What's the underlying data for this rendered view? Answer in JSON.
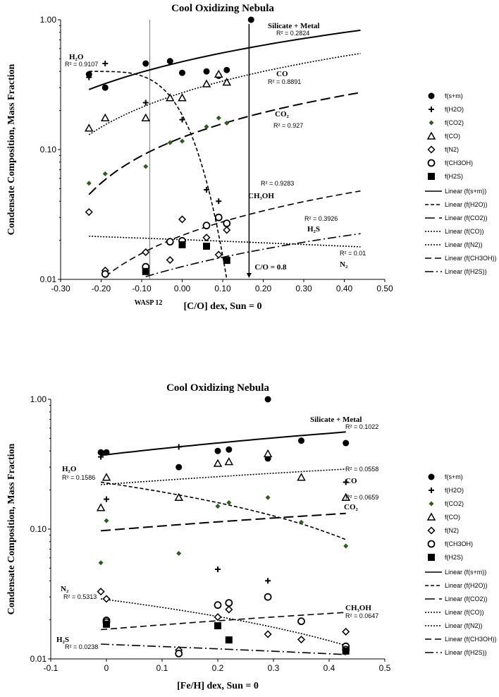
{
  "chart_data": [
    {
      "type": "scatter",
      "title": "Cool Oxidizing Nebula",
      "xlabel": "[C/O] dex, Sun = 0",
      "ylabel": "Condensate Composition, Mass Fraction",
      "xlim": [
        -0.3,
        0.5
      ],
      "ylim": [
        0.01,
        1.0
      ],
      "yscale": "log",
      "xticks": [
        "-0.30",
        "-0.20",
        "-0.10",
        "0.00",
        "0.10",
        "0.20",
        "0.30",
        "0.40",
        "0.50"
      ],
      "yticks": [
        "0.01",
        "0.10",
        "1.00"
      ],
      "series": [
        {
          "name": "f(s+m)",
          "marker": "circle-filled",
          "points": [
            [
              -0.23,
              0.38
            ],
            [
              -0.19,
              0.3
            ],
            [
              -0.09,
              0.46
            ],
            [
              -0.03,
              0.48
            ],
            [
              0.0,
              0.39
            ],
            [
              0.06,
              0.4
            ],
            [
              0.09,
              0.37
            ],
            [
              0.11,
              0.41
            ],
            [
              0.17,
              1.0
            ]
          ]
        },
        {
          "name": "f(H2O)",
          "marker": "plus",
          "points": [
            [
              -0.23,
              0.36
            ],
            [
              -0.19,
              0.46
            ],
            [
              -0.09,
              0.23
            ],
            [
              0.0,
              0.17
            ],
            [
              0.06,
              0.049
            ],
            [
              0.09,
              0.04
            ]
          ]
        },
        {
          "name": "f(CO2)",
          "marker": "diamond-filled",
          "points": [
            [
              -0.23,
              0.055
            ],
            [
              -0.19,
              0.065
            ],
            [
              -0.09,
              0.074
            ],
            [
              -0.03,
              0.113
            ],
            [
              0.0,
              0.116
            ],
            [
              0.06,
              0.15
            ],
            [
              0.09,
              0.175
            ],
            [
              0.11,
              0.16
            ]
          ]
        },
        {
          "name": "f(CO)",
          "marker": "triangle-open",
          "points": [
            [
              -0.23,
              0.146
            ],
            [
              -0.19,
              0.175
            ],
            [
              -0.09,
              0.175
            ],
            [
              -0.03,
              0.25
            ],
            [
              0.0,
              0.25
            ],
            [
              0.06,
              0.32
            ],
            [
              0.09,
              0.38
            ],
            [
              0.11,
              0.33
            ]
          ]
        },
        {
          "name": "f(N2)",
          "marker": "diamond-open",
          "points": [
            [
              -0.23,
              0.033
            ],
            [
              -0.19,
              0.0117
            ],
            [
              -0.09,
              0.0162
            ],
            [
              -0.03,
              0.0141
            ],
            [
              0.0,
              0.029
            ],
            [
              0.06,
              0.021
            ],
            [
              0.09,
              0.0155
            ],
            [
              0.11,
              0.024
            ]
          ]
        },
        {
          "name": "f(CH3OH)",
          "marker": "circle-open",
          "points": [
            [
              -0.19,
              0.011
            ],
            [
              -0.09,
              0.0125
            ],
            [
              -0.03,
              0.0195
            ],
            [
              0.0,
              0.0198
            ],
            [
              0.06,
              0.026
            ],
            [
              0.09,
              0.03
            ],
            [
              0.11,
              0.027
            ]
          ]
        },
        {
          "name": "f(H2S)",
          "marker": "square-filled",
          "points": [
            [
              -0.09,
              0.0115
            ],
            [
              0.0,
              0.0185
            ],
            [
              0.06,
              0.018
            ],
            [
              0.11,
              0.014
            ]
          ]
        }
      ],
      "fits": [
        {
          "name": "Linear (f(s+m))",
          "dash": "solid",
          "x": [
            -0.23,
            0.44
          ],
          "y": [
            0.29,
            0.83
          ],
          "r2": "R² = 0.2824"
        },
        {
          "name": "Linear (f(H2O))",
          "dash": "short",
          "x": [
            -0.23,
            0.11
          ],
          "y": [
            0.4,
            0.01
          ],
          "r2": "R² = 0.9107",
          "curved": true
        },
        {
          "name": "Linear (f(CO2))",
          "dash": "long",
          "x": [
            -0.23,
            0.44
          ],
          "y": [
            0.045,
            0.275
          ],
          "r2": "R² = 0.927"
        },
        {
          "name": "Linear (f(CO))",
          "dash": "dot",
          "x": [
            -0.23,
            0.44
          ],
          "y": [
            0.13,
            0.55
          ],
          "r2": "R² = 0.8891"
        },
        {
          "name": "Linear (f(N2))",
          "dash": "dot",
          "x": [
            -0.23,
            0.44
          ],
          "y": [
            0.0215,
            0.0178
          ],
          "r2": "R² = 0.01"
        },
        {
          "name": "Linear (f(CH3OH))",
          "dash": "dash",
          "x": [
            -0.19,
            0.44
          ],
          "y": [
            0.0105,
            0.048
          ],
          "r2": "R² = 0.9283"
        },
        {
          "name": "Linear (f(H2S))",
          "dash": "dashdot",
          "x": [
            -0.09,
            0.44
          ],
          "y": [
            0.0105,
            0.0225
          ],
          "r2": "R² = 0.3926"
        }
      ],
      "reference_lines": [
        {
          "label": "WASP 12",
          "x": -0.08
        },
        {
          "label": "C/O = 0.8",
          "x": 0.165
        }
      ],
      "labels": {
        "silicate": "Silicate + Metal",
        "h2o": "H₂O",
        "co": "CO",
        "co2": "CO₂",
        "ch3oh": "CH₃OH",
        "h2s": "H₂S",
        "n2": "N₂"
      }
    },
    {
      "type": "scatter",
      "title": "Cool Oxidizing Nebula",
      "xlabel": "[Fe/H] dex, Sun = 0",
      "ylabel": "Condensate Composition, Mass Fraction",
      "xlim": [
        -0.1,
        0.5
      ],
      "ylim": [
        0.01,
        1.0
      ],
      "yscale": "log",
      "xticks": [
        "-0.1",
        "0",
        "0.1",
        "0.2",
        "0.3",
        "0.4",
        "0.5"
      ],
      "yticks": [
        "0.01",
        "0.10",
        "1.00"
      ],
      "series": [
        {
          "name": "f(s+m)",
          "marker": "circle-filled",
          "points": [
            [
              -0.01,
              0.39
            ],
            [
              0.0,
              0.39
            ],
            [
              0.13,
              0.3
            ],
            [
              0.2,
              0.4
            ],
            [
              0.22,
              0.41
            ],
            [
              0.29,
              1.0
            ],
            [
              0.29,
              0.35
            ],
            [
              0.35,
              0.48
            ],
            [
              0.43,
              0.46
            ]
          ]
        },
        {
          "name": "f(H2O)",
          "marker": "plus",
          "points": [
            [
              -0.01,
              0.36
            ],
            [
              0.0,
              0.17
            ],
            [
              0.13,
              0.43
            ],
            [
              0.2,
              0.049
            ],
            [
              0.29,
              0.04
            ],
            [
              0.43,
              0.23
            ]
          ]
        },
        {
          "name": "f(CO2)",
          "marker": "diamond-filled",
          "points": [
            [
              -0.01,
              0.055
            ],
            [
              0.0,
              0.116
            ],
            [
              0.13,
              0.065
            ],
            [
              0.2,
              0.15
            ],
            [
              0.22,
              0.16
            ],
            [
              0.29,
              0.175
            ],
            [
              0.35,
              0.113
            ],
            [
              0.43,
              0.074
            ]
          ]
        },
        {
          "name": "f(CO)",
          "marker": "triangle-open",
          "points": [
            [
              -0.01,
              0.146
            ],
            [
              0.0,
              0.25
            ],
            [
              0.13,
              0.175
            ],
            [
              0.2,
              0.32
            ],
            [
              0.22,
              0.33
            ],
            [
              0.29,
              0.38
            ],
            [
              0.35,
              0.25
            ],
            [
              0.43,
              0.175
            ]
          ]
        },
        {
          "name": "f(N2)",
          "marker": "diamond-open",
          "points": [
            [
              -0.01,
              0.033
            ],
            [
              0.0,
              0.029
            ],
            [
              0.13,
              0.0117
            ],
            [
              0.2,
              0.021
            ],
            [
              0.22,
              0.024
            ],
            [
              0.29,
              0.0155
            ],
            [
              0.35,
              0.0141
            ],
            [
              0.43,
              0.0162
            ]
          ]
        },
        {
          "name": "f(CH3OH)",
          "marker": "circle-open",
          "points": [
            [
              0.0,
              0.0198
            ],
            [
              0.0,
              0.0192
            ],
            [
              0.13,
              0.011
            ],
            [
              0.2,
              0.026
            ],
            [
              0.22,
              0.027
            ],
            [
              0.29,
              0.03
            ],
            [
              0.35,
              0.0195
            ],
            [
              0.43,
              0.0125
            ],
            [
              0.43,
              0.0118
            ]
          ]
        },
        {
          "name": "f(H2S)",
          "marker": "square-filled",
          "points": [
            [
              0.0,
              0.0185
            ],
            [
              0.2,
              0.018
            ],
            [
              0.22,
              0.014
            ],
            [
              0.43,
              0.0115
            ]
          ]
        }
      ],
      "fits": [
        {
          "name": "Linear (f(s+m))",
          "dash": "solid",
          "x": [
            -0.01,
            0.43
          ],
          "y": [
            0.37,
            0.56
          ],
          "r2": "R² = 0.1022"
        },
        {
          "name": "Linear (f(H2O))",
          "dash": "short",
          "x": [
            -0.01,
            0.43
          ],
          "y": [
            0.23,
            0.083
          ],
          "r2": "R² = 0.1586"
        },
        {
          "name": "Linear (f(CO2))",
          "dash": "long",
          "x": [
            -0.01,
            0.43
          ],
          "y": [
            0.097,
            0.132
          ],
          "r2": "R² = 0.0659"
        },
        {
          "name": "Linear (f(CO))",
          "dash": "dot",
          "x": [
            -0.01,
            0.43
          ],
          "y": [
            0.22,
            0.29
          ],
          "r2": "R² = 0.0558"
        },
        {
          "name": "Linear (f(N2))",
          "dash": "dot",
          "x": [
            -0.01,
            0.43
          ],
          "y": [
            0.029,
            0.0127
          ],
          "r2": "R² = 0.5313"
        },
        {
          "name": "Linear (f(CH3OH))",
          "dash": "dash",
          "x": [
            -0.01,
            0.43
          ],
          "y": [
            0.0168,
            0.0228
          ],
          "r2": "R² = 0.0647"
        },
        {
          "name": "Linear (f(H2S))",
          "dash": "dashdot",
          "x": [
            -0.01,
            0.43
          ],
          "y": [
            0.013,
            0.0108
          ],
          "r2": "R² = 0.0238"
        }
      ],
      "labels": {
        "silicate": "Silicate + Metal",
        "h2o": "H₂O",
        "co": "CO",
        "co2": "CO₂",
        "ch3oh": "CH₃OH",
        "h2s": "H₂S",
        "n2": "N₂"
      }
    }
  ],
  "legend": {
    "markers": [
      "f(s+m)",
      "f(H2O)",
      "f(CO2)",
      "f(CO)",
      "f(N2)",
      "f(CH3OH)",
      "f(H2S)"
    ],
    "lines": [
      "Linear (f(s+m))",
      "Linear (f(H2O))",
      "Linear (f(CO2))",
      "Linear (f(CO))",
      "Linear (f(N2))",
      "Linear (f(CH3OH))",
      "Linear (f(H2S))"
    ]
  },
  "colors": {
    "ink": "#000000",
    "co2_fill": "#2e5c1e",
    "ref_line": "#808080"
  }
}
